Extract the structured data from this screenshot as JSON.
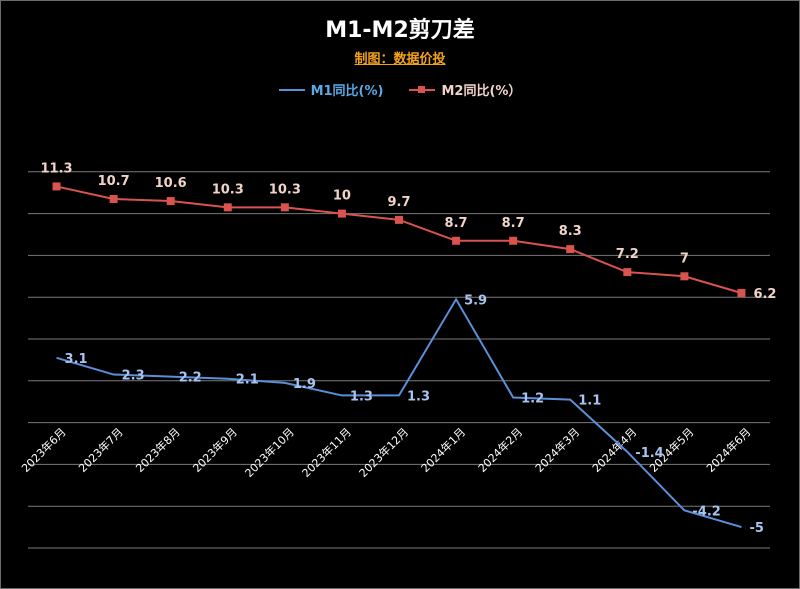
{
  "chart_data": {
    "type": "line",
    "title": "M1-M2剪刀差",
    "subtitle": "制图：数据价投",
    "categories": [
      "2023年6月",
      "2023年7月",
      "2023年8月",
      "2023年9月",
      "2023年10月",
      "2023年11月",
      "2023年12月",
      "2024年1月",
      "2024年2月",
      "2024年3月",
      "2024年4月",
      "2024年5月",
      "2024年6月"
    ],
    "series": [
      {
        "name": "M1同比(%)",
        "values": [
          3.1,
          2.3,
          2.2,
          2.1,
          1.9,
          1.3,
          1.3,
          5.9,
          1.2,
          1.1,
          -1.4,
          -4.2,
          -5
        ],
        "color": "#5b8fd8",
        "label_color": "#a9c4f0",
        "marker": "none"
      },
      {
        "name": "M2同比(%）",
        "values": [
          11.3,
          10.7,
          10.6,
          10.3,
          10.3,
          10,
          9.7,
          8.7,
          8.7,
          8.3,
          7.2,
          7,
          6.2
        ],
        "color": "#d9534f",
        "label_color": "#f2d3c9",
        "marker": "square"
      }
    ],
    "xlabel": "",
    "ylabel": "",
    "ylim": [
      -6,
      14
    ],
    "grid": true,
    "legend": "top-center",
    "colors": {
      "background": "#000000",
      "title": "#ffffff",
      "subtitle": "#f3a21d",
      "grid": "#7a7a7a",
      "tick_label": "#ffffff"
    }
  }
}
